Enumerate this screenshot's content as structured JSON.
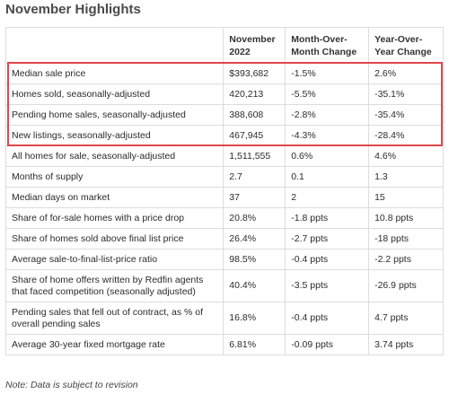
{
  "title": "November Highlights",
  "table": {
    "headers": [
      "",
      "November 2022",
      "Month-Over-Month Change",
      "Year-Over-Year Change"
    ],
    "rows": [
      [
        "Median sale price",
        "$393,682",
        "-1.5%",
        "2.6%"
      ],
      [
        "Homes sold, seasonally-adjusted",
        "420,213",
        "-5.5%",
        "-35.1%"
      ],
      [
        "Pending home sales, seasonally-adjusted",
        "388,608",
        "-2.8%",
        "-35.4%"
      ],
      [
        "New listings, seasonally-adjusted",
        "467,945",
        "-4.3%",
        "-28.4%"
      ],
      [
        "All homes for sale, seasonally-adjusted",
        "1,511,555",
        "0.6%",
        "4.6%"
      ],
      [
        "Months of supply",
        "2.7",
        "0.1",
        "1.3"
      ],
      [
        "Median days on market",
        "37",
        "2",
        "15"
      ],
      [
        "Share of for-sale homes with a price drop",
        "20.8%",
        "-1.8 ppts",
        "10.8 ppts"
      ],
      [
        "Share of homes sold above final list price",
        "26.4%",
        "-2.7 ppts",
        "-18 ppts"
      ],
      [
        "Average sale-to-final-list-price ratio",
        "98.5%",
        "-0.4 ppts",
        "-2.2 ppts"
      ],
      [
        "Share of home offers written by Redfin agents that faced competition (seasonally adjusted)",
        "40.4%",
        "-3.5 ppts",
        "-26.9 ppts"
      ],
      [
        "Pending sales that fell out of contract, as % of overall pending sales",
        "16.8%",
        "-0.4 ppts",
        "4.7 ppts"
      ],
      [
        "Average 30-year fixed mortgage rate",
        "6.81%",
        "-0.09 ppts",
        "3.74 ppts"
      ]
    ]
  },
  "note": "Note: Data is subject to revision",
  "colors": {
    "highlight_border": "#e0474c",
    "grid": "#dcdcdc"
  }
}
